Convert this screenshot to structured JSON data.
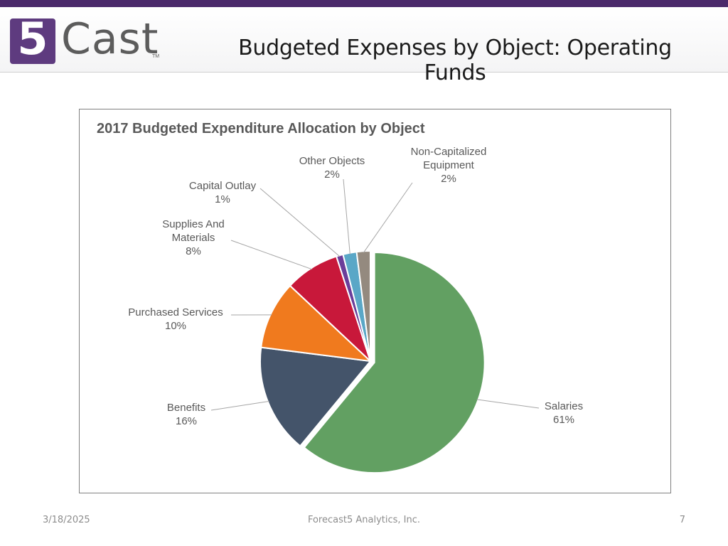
{
  "header": {
    "logo_mark": "5",
    "logo_text": "Cast",
    "logo_tm": "TM",
    "title": "Budgeted Expenses by Object: Operating Funds"
  },
  "colors": {
    "brand": "#5e3b7f",
    "top_bar": "#4b2a6b"
  },
  "chart_data": {
    "type": "pie",
    "title": "2017 Budgeted Expenditure Allocation by Object",
    "slices": [
      {
        "label": "Salaries",
        "label_lines": [
          "Salaries"
        ],
        "value": 61,
        "display": "61%",
        "color": "#62a062"
      },
      {
        "label": "Benefits",
        "label_lines": [
          "Benefits"
        ],
        "value": 16,
        "display": "16%",
        "color": "#44546a"
      },
      {
        "label": "Purchased Services",
        "label_lines": [
          "Purchased Services"
        ],
        "value": 10,
        "display": "10%",
        "color": "#f07a1e"
      },
      {
        "label": "Supplies And Materials",
        "label_lines": [
          "Supplies And",
          "Materials"
        ],
        "value": 8,
        "display": "8%",
        "color": "#c8183a"
      },
      {
        "label": "Capital Outlay",
        "label_lines": [
          "Capital Outlay"
        ],
        "value": 1,
        "display": "1%",
        "color": "#6a3d9a"
      },
      {
        "label": "Other Objects",
        "label_lines": [
          "Other Objects"
        ],
        "value": 2,
        "display": "2%",
        "color": "#5aa7c7"
      },
      {
        "label": "Non-Capitalized Equipment",
        "label_lines": [
          "Non-Capitalized",
          "Equipment"
        ],
        "value": 2,
        "display": "2%",
        "color": "#948a7f"
      }
    ],
    "exploded": [
      "Salaries"
    ],
    "legend": "none",
    "label_style": "outside-with-leader-lines"
  },
  "footer": {
    "date": "3/18/2025",
    "company": "Forecast5 Analytics, Inc.",
    "page": "7"
  }
}
